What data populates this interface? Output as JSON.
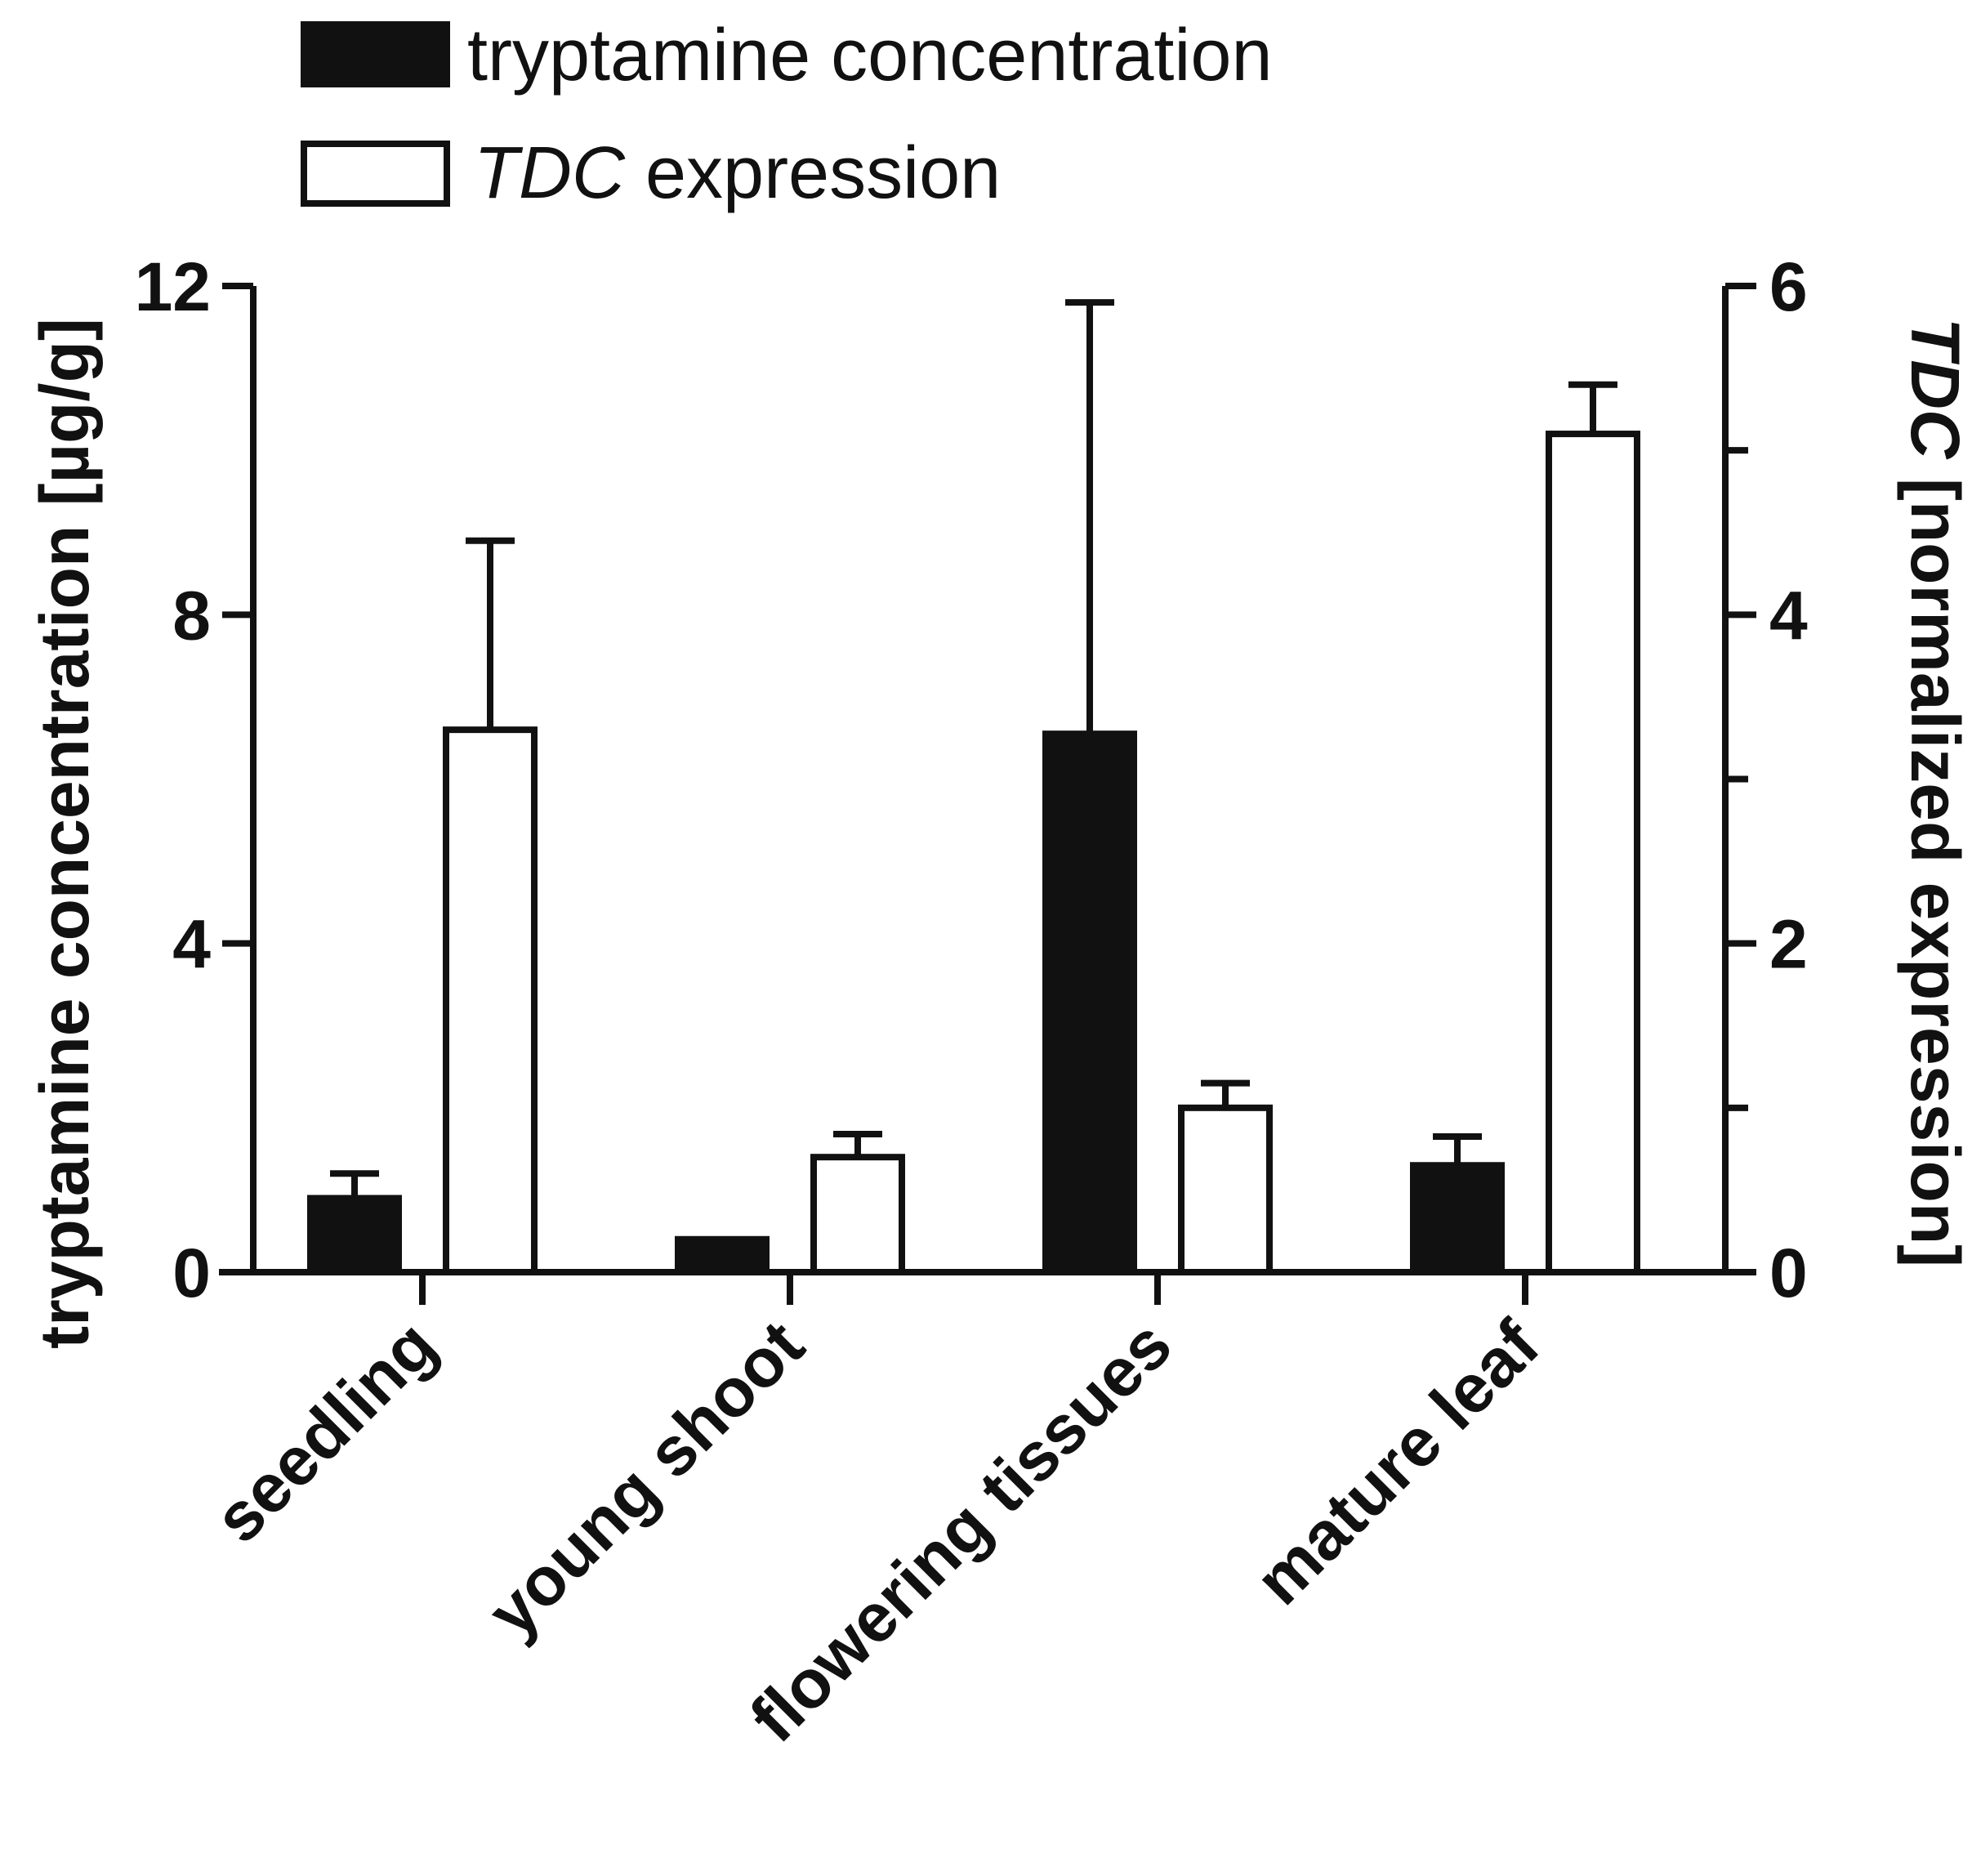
{
  "chart_data": {
    "type": "bar",
    "categories": [
      "seedling",
      "young shoot",
      "flowering tissues",
      "mature leaf"
    ],
    "series": [
      {
        "name": "tryptamine concentration",
        "axis": "left",
        "fill": "#111111",
        "values": [
          0.9,
          0.4,
          6.55,
          1.3
        ],
        "errors": [
          0.3,
          0.0,
          5.25,
          0.35
        ]
      },
      {
        "name": "TDC expression",
        "axis": "right",
        "fill": "#ffffff",
        "values": [
          3.3,
          0.7,
          1.0,
          5.1
        ],
        "errors": [
          1.15,
          0.14,
          0.15,
          0.3
        ]
      }
    ],
    "legend": {
      "tryptamine": "tryptamine concentration",
      "tdc_italic": "TDC",
      "tdc_rest": " expression"
    },
    "y_left": {
      "label": "tryptamine concentration [µg/g]",
      "ylim": [
        0,
        12
      ],
      "ticks": [
        0,
        4,
        8,
        12
      ]
    },
    "y_right": {
      "label_italic": "TDC",
      "label_rest": " [normalized expression]",
      "ylim": [
        0,
        6
      ],
      "ticks": [
        0,
        2,
        4,
        6
      ],
      "minor_ticks": [
        1,
        3,
        5
      ]
    }
  }
}
